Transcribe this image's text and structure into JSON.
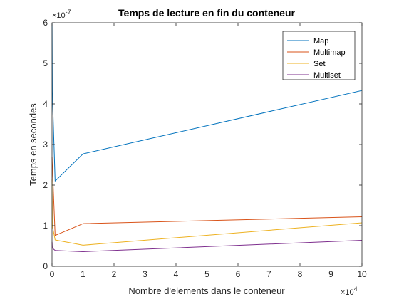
{
  "chart_data": {
    "type": "line",
    "title": "Temps de lecture en fin du conteneur",
    "xlabel": "Nombre d'elements dans le conteneur",
    "ylabel": "Temps en secondes",
    "x_multiplier": "×10",
    "x_exponent": "4",
    "y_multiplier": "×10",
    "y_exponent": "-7",
    "xlim": [
      0,
      100000
    ],
    "ylim": [
      0,
      6e-07
    ],
    "x_ticks": [
      0,
      10000,
      20000,
      30000,
      40000,
      50000,
      60000,
      70000,
      80000,
      90000,
      100000
    ],
    "x_tick_labels": [
      "0",
      "1",
      "2",
      "3",
      "4",
      "5",
      "6",
      "7",
      "8",
      "9",
      "10"
    ],
    "y_ticks": [
      0,
      1e-07,
      2e-07,
      3e-07,
      4e-07,
      5e-07,
      6e-07
    ],
    "y_tick_labels": [
      "0",
      "1",
      "2",
      "3",
      "4",
      "5",
      "6"
    ],
    "legend_position": "top-right",
    "grid": false,
    "series": [
      {
        "name": "Map",
        "color": "#0072BD",
        "x": [
          10,
          100,
          1000,
          10000,
          100000
        ],
        "y": [
          6e-07,
          4.3e-07,
          2.1e-07,
          2.77e-07,
          4.33e-07
        ]
      },
      {
        "name": "Multimap",
        "color": "#D95319",
        "x": [
          10,
          100,
          1000,
          10000,
          100000
        ],
        "y": [
          2.7e-07,
          2.5e-07,
          7.6e-08,
          1.05e-07,
          1.22e-07
        ]
      },
      {
        "name": "Set",
        "color": "#EDB120",
        "x": [
          10,
          100,
          1000,
          10000,
          100000
        ],
        "y": [
          2.15e-07,
          1e-07,
          6.5e-08,
          5.2e-08,
          1.07e-07
        ]
      },
      {
        "name": "Multiset",
        "color": "#7E2F8E",
        "x": [
          10,
          100,
          1000,
          10000,
          100000
        ],
        "y": [
          6e-08,
          4.5e-08,
          3.9e-08,
          3.6e-08,
          6.4e-08
        ]
      }
    ]
  }
}
